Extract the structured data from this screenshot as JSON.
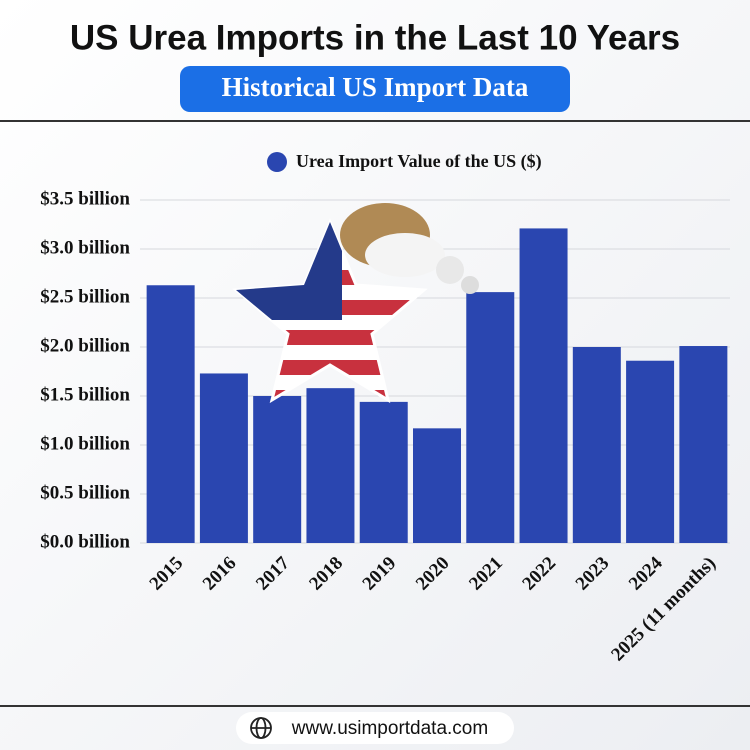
{
  "chart_data": {
    "type": "bar",
    "title": "US Urea Imports in the Last 10 Years",
    "subtitle": "Historical US Import Data",
    "categories": [
      "2015",
      "2016",
      "2017",
      "2018",
      "2019",
      "2020",
      "2021",
      "2022",
      "2023",
      "2024",
      "2025 (11 months)"
    ],
    "series": [
      {
        "name": "Urea Import Value of the US ($)",
        "color": "#2a46b0",
        "values": [
          2.63,
          1.73,
          1.5,
          1.58,
          1.44,
          1.17,
          2.56,
          3.21,
          2.0,
          1.86,
          2.01
        ]
      }
    ],
    "ylim": [
      0,
      3.5
    ],
    "yticks": [
      {
        "value": 0,
        "label": "$0.0 billion"
      },
      {
        "value": 0.5,
        "label": "$0.5 billion"
      },
      {
        "value": 1,
        "label": "$1.0 billion"
      },
      {
        "value": 1.5,
        "label": "$1.5 billion"
      },
      {
        "value": 2,
        "label": "$2.0 billion"
      },
      {
        "value": 2.5,
        "label": "$2.5 billion"
      },
      {
        "value": 3,
        "label": "$3.0 billion"
      },
      {
        "value": 3.5,
        "label": "$3.5 billion"
      }
    ],
    "grid": true
  },
  "footer": {
    "website": "www.usimportdata.com"
  }
}
